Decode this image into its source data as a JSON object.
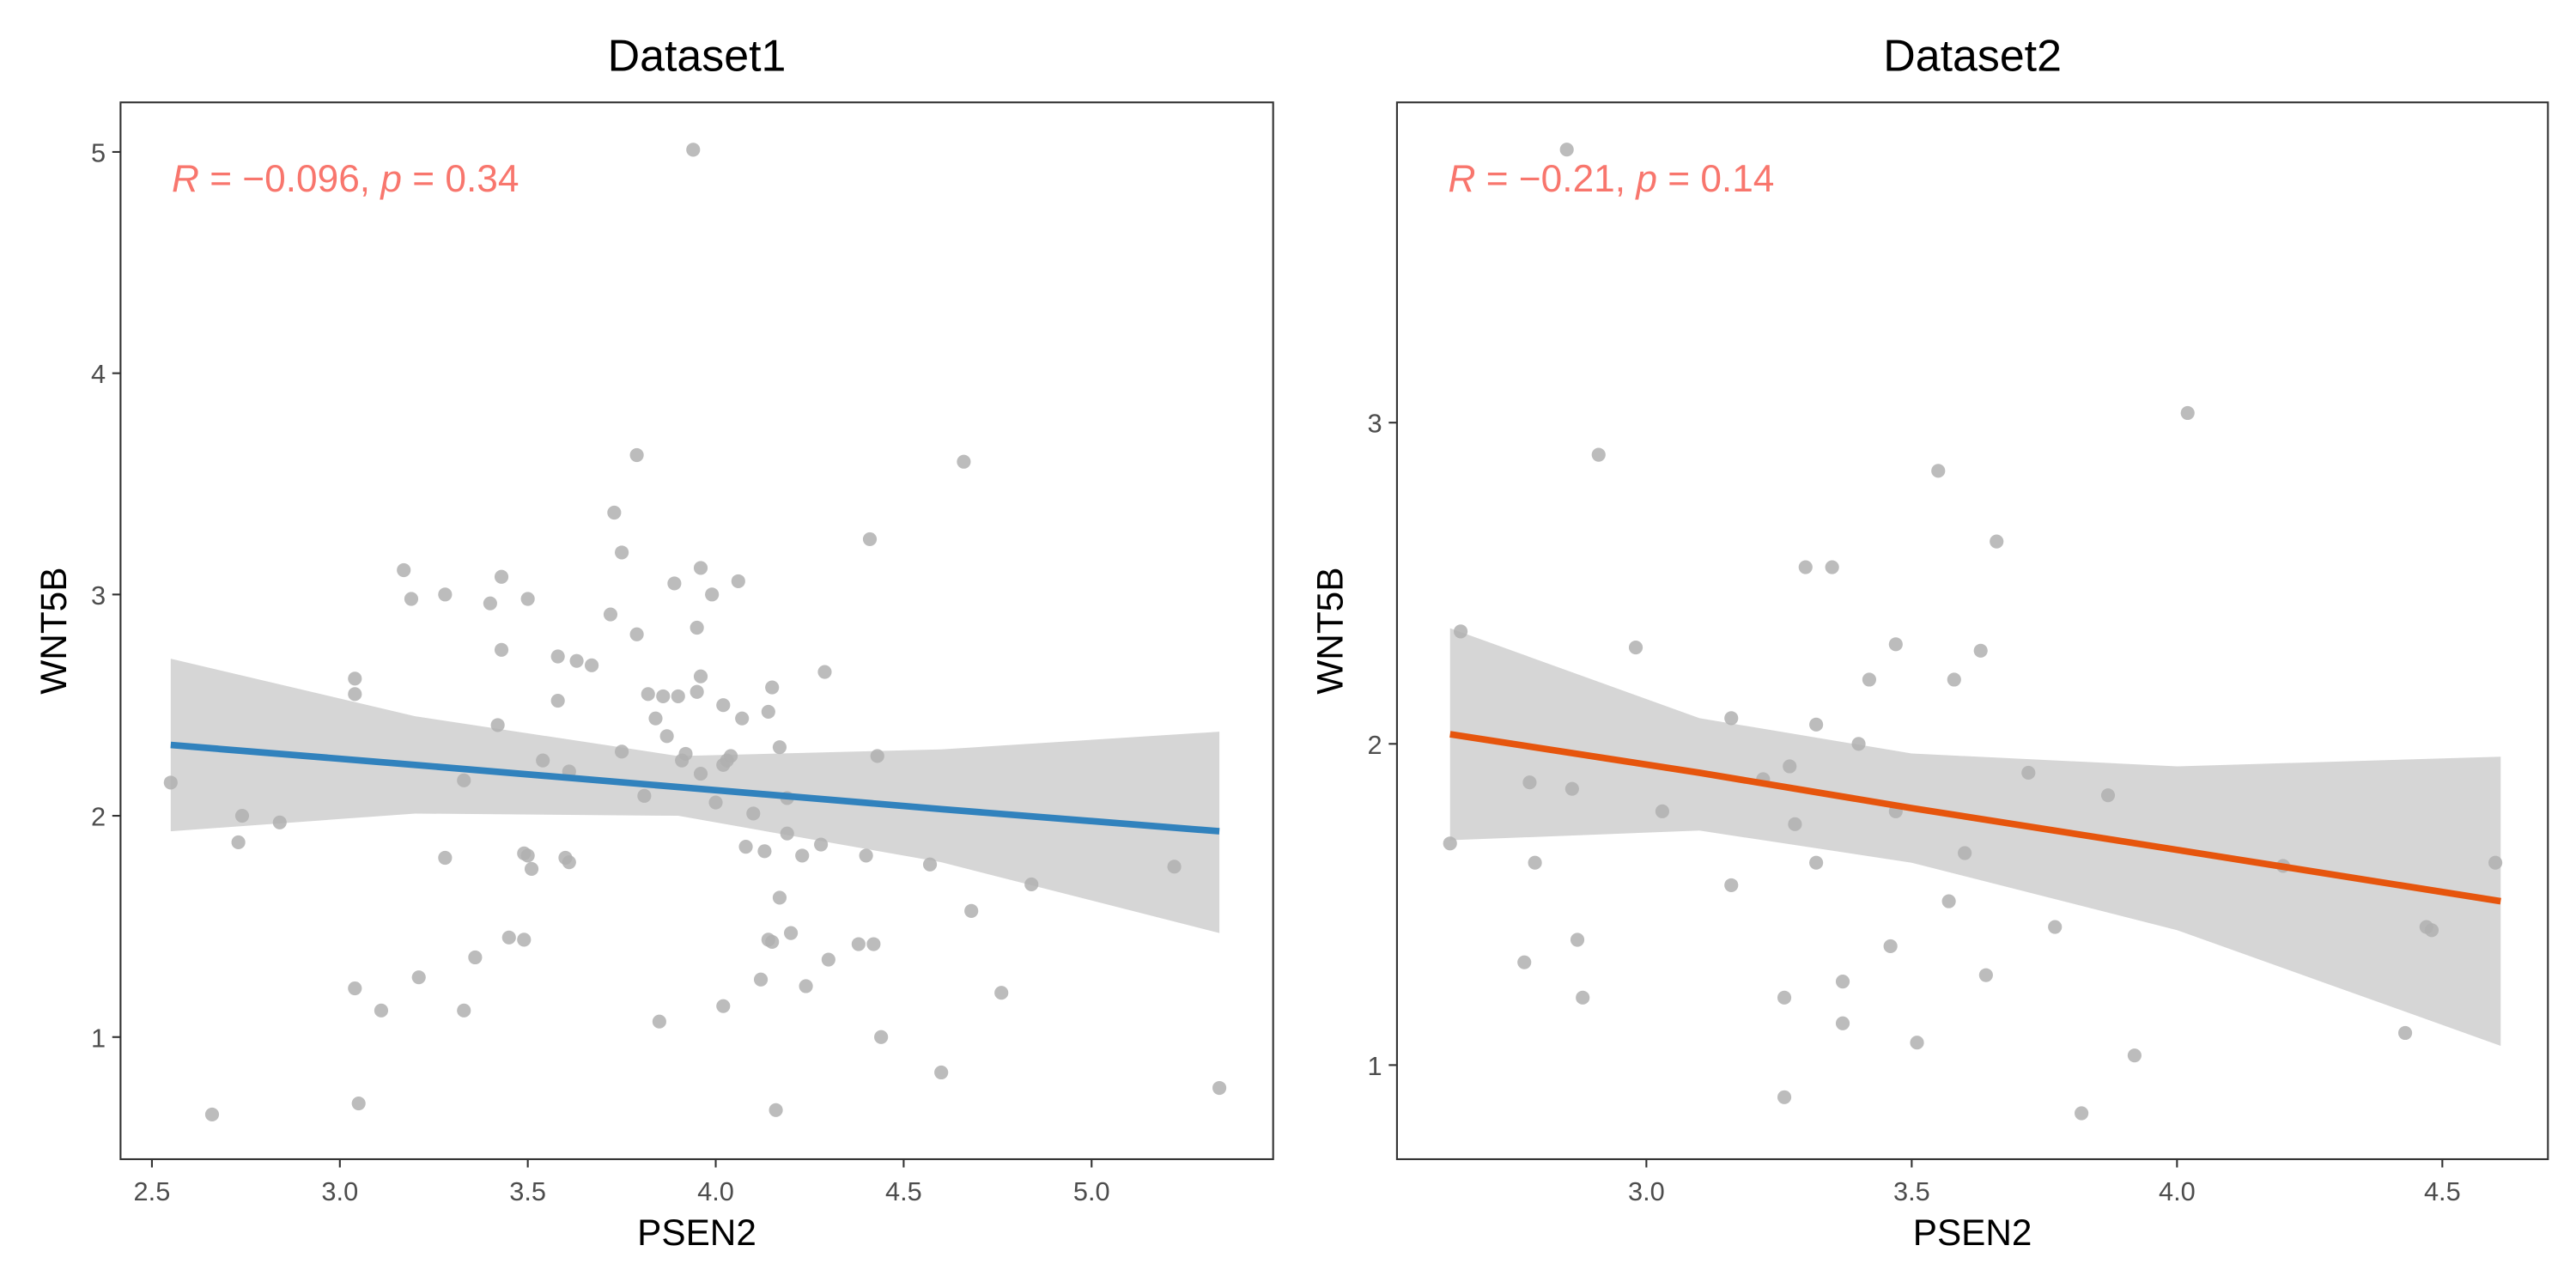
{
  "chart_data": [
    {
      "type": "scatter",
      "title": "Dataset1",
      "xlabel": "PSEN2",
      "ylabel": "WNT5B",
      "annotation": [
        "R",
        " = −0.096, ",
        "p",
        " = 0.34"
      ],
      "point_color": "#b0b0b0",
      "x": [
        2.55,
        2.66,
        2.73,
        2.74,
        2.84,
        3.04,
        3.04,
        3.04,
        3.05,
        3.11,
        3.17,
        3.19,
        3.21,
        3.28,
        3.28,
        3.33,
        3.33,
        3.36,
        3.4,
        3.42,
        3.43,
        3.43,
        3.45,
        3.49,
        3.49,
        3.5,
        3.5,
        3.51,
        3.54,
        3.58,
        3.58,
        3.6,
        3.61,
        3.61,
        3.63,
        3.67,
        3.72,
        3.73,
        3.75,
        3.75,
        3.79,
        3.79,
        3.81,
        3.82,
        3.84,
        3.85,
        3.86,
        3.87,
        3.89,
        3.9,
        3.91,
        3.92,
        3.94,
        3.95,
        3.95,
        3.96,
        3.96,
        3.96,
        3.99,
        4.0,
        4.02,
        4.02,
        4.02,
        4.03,
        4.04,
        4.06,
        4.07,
        4.08,
        4.1,
        4.12,
        4.13,
        4.14,
        4.14,
        4.15,
        4.15,
        4.16,
        4.17,
        4.17,
        4.19,
        4.19,
        4.2,
        4.23,
        4.24,
        4.28,
        4.29,
        4.3,
        4.38,
        4.4,
        4.41,
        4.42,
        4.43,
        4.44,
        4.57,
        4.6,
        4.66,
        4.68,
        4.76,
        4.84,
        5.22,
        5.34
      ],
      "y": [
        2.15,
        0.65,
        1.88,
        2.0,
        1.97,
        2.55,
        2.62,
        1.22,
        0.7,
        1.12,
        3.11,
        2.98,
        1.27,
        3.0,
        1.81,
        2.16,
        1.12,
        1.36,
        2.96,
        2.41,
        3.08,
        2.75,
        1.45,
        1.83,
        1.44,
        2.98,
        1.82,
        1.76,
        2.25,
        2.52,
        2.72,
        1.81,
        1.79,
        2.2,
        2.7,
        2.68,
        2.91,
        3.37,
        3.19,
        2.29,
        3.63,
        2.82,
        2.09,
        2.55,
        2.44,
        1.07,
        2.54,
        2.36,
        3.05,
        2.54,
        2.25,
        2.28,
        5.01,
        2.85,
        2.56,
        3.12,
        2.63,
        2.19,
        3.0,
        2.06,
        1.14,
        2.5,
        2.23,
        2.25,
        2.27,
        3.06,
        2.44,
        1.86,
        2.01,
        1.26,
        1.84,
        1.44,
        2.47,
        2.58,
        1.43,
        0.67,
        1.63,
        2.31,
        2.08,
        1.92,
        1.47,
        1.82,
        1.23,
        1.87,
        2.65,
        1.35,
        1.42,
        1.82,
        3.25,
        1.42,
        2.27,
        1.0,
        1.78,
        0.84,
        3.6,
        1.57,
        1.2,
        1.69,
        1.77,
        0.77
      ],
      "fit": {
        "color": "#3182bd",
        "band_color": "#d6d6d6",
        "x": [
          2.55,
          3.2,
          3.9,
          4.6,
          5.34
        ],
        "y": [
          2.32,
          2.23,
          2.13,
          2.03,
          1.93
        ],
        "upper": [
          2.71,
          2.45,
          2.27,
          2.3,
          2.38
        ],
        "lower": [
          1.93,
          2.01,
          2.0,
          1.79,
          1.47
        ]
      },
      "xlim": [
        2.4165,
        5.483
      ],
      "ylim": [
        0.448,
        5.224
      ],
      "xticks": [
        {
          "value": 2.5,
          "label": "2.5"
        },
        {
          "value": 3.0,
          "label": "3.0"
        },
        {
          "value": 3.5,
          "label": "3.5"
        },
        {
          "value": 4.0,
          "label": "4.0"
        },
        {
          "value": 4.5,
          "label": "4.5"
        },
        {
          "value": 5.0,
          "label": "5.0"
        }
      ],
      "yticks": [
        1,
        2,
        3,
        4,
        5
      ]
    },
    {
      "type": "scatter",
      "title": "Dataset2",
      "xlabel": "PSEN2",
      "ylabel": "WNT5B",
      "annotation": [
        "R",
        " = −0.21, ",
        "p",
        " = 0.14"
      ],
      "point_color": "#b0b0b0",
      "x": [
        2.63,
        2.65,
        2.85,
        2.77,
        2.78,
        2.79,
        2.86,
        2.87,
        2.88,
        2.91,
        2.98,
        3.03,
        3.16,
        3.16,
        3.22,
        3.26,
        3.26,
        3.27,
        3.28,
        3.3,
        3.32,
        3.32,
        3.35,
        3.37,
        3.37,
        3.4,
        3.42,
        3.46,
        3.47,
        3.47,
        3.51,
        3.55,
        3.57,
        3.58,
        3.6,
        3.63,
        3.64,
        3.66,
        3.72,
        3.77,
        3.82,
        3.87,
        3.92,
        4.02,
        4.2,
        4.43,
        4.47,
        4.48,
        4.6
      ],
      "y": [
        1.69,
        2.35,
        3.85,
        1.32,
        1.88,
        1.63,
        1.86,
        1.39,
        1.21,
        2.9,
        2.3,
        1.79,
        2.08,
        1.56,
        1.89,
        1.21,
        0.9,
        1.93,
        1.75,
        2.55,
        2.06,
        1.63,
        2.55,
        1.26,
        1.13,
        2.0,
        2.2,
        1.37,
        2.31,
        1.79,
        1.07,
        2.85,
        1.51,
        2.2,
        1.66,
        2.29,
        1.28,
        2.63,
        1.91,
        1.43,
        0.85,
        1.84,
        1.03,
        3.03,
        1.62,
        1.1,
        1.43,
        1.42,
        1.63
      ],
      "fit": {
        "color": "#e6550d",
        "band_color": "#d6d6d6",
        "x": [
          2.63,
          3.1,
          3.5,
          4.0,
          4.61
        ],
        "y": [
          2.03,
          1.91,
          1.8,
          1.67,
          1.51
        ],
        "upper": [
          2.36,
          2.08,
          1.97,
          1.93,
          1.96
        ],
        "lower": [
          1.7,
          1.73,
          1.63,
          1.42,
          1.06
        ]
      },
      "xlim": [
        2.53,
        4.699
      ],
      "ylim": [
        0.707,
        3.997
      ],
      "xticks": [
        {
          "value": 3.0,
          "label": "3.0"
        },
        {
          "value": 3.5,
          "label": "3.5"
        },
        {
          "value": 4.0,
          "label": "4.0"
        },
        {
          "value": 4.5,
          "label": "4.5"
        }
      ],
      "yticks": [
        1,
        2,
        3
      ]
    }
  ]
}
